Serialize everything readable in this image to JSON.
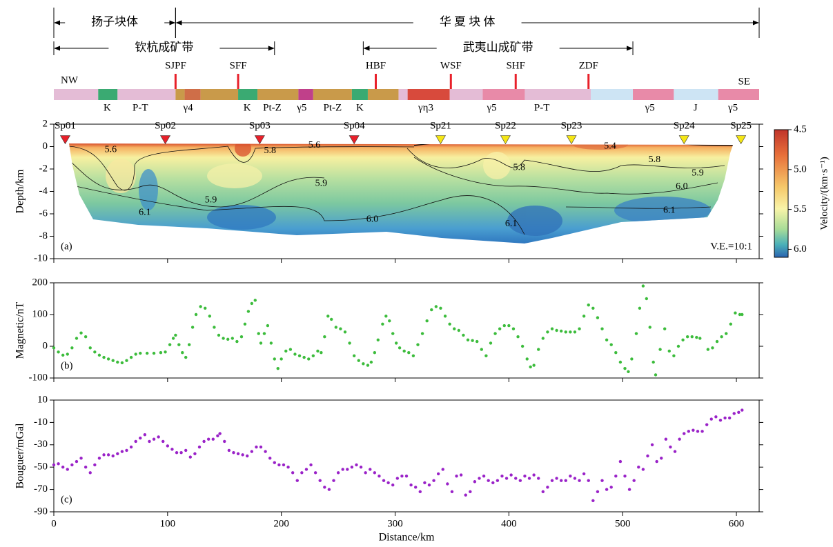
{
  "chart_data": [
    {
      "type": "section",
      "panel_label": "(a)",
      "ylabel": "Depth/km",
      "annotation": "V.E.=10:1",
      "xlim": [
        0,
        620
      ],
      "xticks": [
        0,
        100,
        200,
        300,
        400,
        500,
        600
      ],
      "ylim": [
        -10,
        2
      ],
      "yticks": [
        2,
        0,
        -2,
        -4,
        -6,
        -8,
        -10
      ],
      "left_label": "NW",
      "right_label": "SE",
      "blocks": [
        {
          "label": "扬子块体",
          "x0": 0,
          "x1": 107
        },
        {
          "label": "华 夏 块 体",
          "x0": 107,
          "x1": 620
        }
      ],
      "belts": [
        {
          "label": "钦杭成矿带",
          "x0": 0,
          "x1": 194
        },
        {
          "label": "武夷山成矿带",
          "x0": 272,
          "x1": 509
        }
      ],
      "faults": [
        {
          "label": "SJPF",
          "x": 107
        },
        {
          "label": "SFF",
          "x": 162
        },
        {
          "label": "HBF",
          "x": 283
        },
        {
          "label": "WSF",
          "x": 349
        },
        {
          "label": "SHF",
          "x": 406
        },
        {
          "label": "ZDF",
          "x": 470
        }
      ],
      "strip": [
        {
          "x0": 0,
          "x1": 39,
          "color": "#e4bcd6"
        },
        {
          "x0": 39,
          "x1": 56,
          "color": "#3aaa72"
        },
        {
          "x0": 56,
          "x1": 107,
          "color": "#e4bcd6"
        },
        {
          "x0": 107,
          "x1": 115,
          "color": "#c99a4a"
        },
        {
          "x0": 115,
          "x1": 129,
          "color": "#cf6e48"
        },
        {
          "x0": 129,
          "x1": 162,
          "color": "#c99a4a"
        },
        {
          "x0": 162,
          "x1": 179,
          "color": "#3aaa72"
        },
        {
          "x0": 179,
          "x1": 215,
          "color": "#c99a4a"
        },
        {
          "x0": 215,
          "x1": 228,
          "color": "#c0408a"
        },
        {
          "x0": 228,
          "x1": 262,
          "color": "#c99a4a"
        },
        {
          "x0": 262,
          "x1": 276,
          "color": "#3aaa72"
        },
        {
          "x0": 276,
          "x1": 303,
          "color": "#c99a4a"
        },
        {
          "x0": 303,
          "x1": 311,
          "color": "#e4bcd6"
        },
        {
          "x0": 311,
          "x1": 348,
          "color": "#d84a3c"
        },
        {
          "x0": 348,
          "x1": 377,
          "color": "#e4bcd6"
        },
        {
          "x0": 377,
          "x1": 414,
          "color": "#e88aa8"
        },
        {
          "x0": 414,
          "x1": 472,
          "color": "#e4bcd6"
        },
        {
          "x0": 472,
          "x1": 509,
          "color": "#cde4f4"
        },
        {
          "x0": 509,
          "x1": 545,
          "color": "#e88aa8"
        },
        {
          "x0": 545,
          "x1": 584,
          "color": "#cde4f4"
        },
        {
          "x0": 584,
          "x1": 620,
          "color": "#e88aa8"
        }
      ],
      "units": [
        {
          "label": "K",
          "x": 47
        },
        {
          "label": "P-T",
          "x": 76
        },
        {
          "label": "γ4",
          "x": 118
        },
        {
          "label": "K",
          "x": 170
        },
        {
          "label": "Pt-Z",
          "x": 192
        },
        {
          "label": "γ5",
          "x": 218
        },
        {
          "label": "Pt-Z",
          "x": 245
        },
        {
          "label": "K",
          "x": 269
        },
        {
          "label": "γη3",
          "x": 327
        },
        {
          "label": "γ5",
          "x": 385
        },
        {
          "label": "P-T",
          "x": 429
        },
        {
          "label": "γ5",
          "x": 524
        },
        {
          "label": "J",
          "x": 564
        },
        {
          "label": "γ5",
          "x": 597
        }
      ],
      "shot_points": [
        {
          "name": "Sp01",
          "x": 10,
          "color": "#e8202a"
        },
        {
          "name": "Sp02",
          "x": 98,
          "color": "#e8202a"
        },
        {
          "name": "Sp03",
          "x": 181,
          "color": "#e8202a"
        },
        {
          "name": "Sp04",
          "x": 264,
          "color": "#e8202a"
        },
        {
          "name": "Sp21",
          "x": 340,
          "color": "#f5e614"
        },
        {
          "name": "Sp22",
          "x": 397,
          "color": "#f5e614"
        },
        {
          "name": "Sp23",
          "x": 455,
          "color": "#f5e614"
        },
        {
          "name": "Sp24",
          "x": 554,
          "color": "#f5e614"
        },
        {
          "name": "Sp25",
          "x": 604,
          "color": "#f5e614"
        }
      ],
      "contour_labels": [
        {
          "label": "5.6",
          "x": 50,
          "y": -0.3
        },
        {
          "label": "5.6",
          "x": 229,
          "y": 0.1
        },
        {
          "label": "5.8",
          "x": 190,
          "y": -0.4
        },
        {
          "label": "5.9",
          "x": 235,
          "y": -3.3
        },
        {
          "label": "5.9",
          "x": 138,
          "y": -4.8
        },
        {
          "label": "6.1",
          "x": 80,
          "y": -5.9
        },
        {
          "label": "6.0",
          "x": 280,
          "y": -6.5
        },
        {
          "label": "6.1",
          "x": 402,
          "y": -6.9
        },
        {
          "label": "5.8",
          "x": 409,
          "y": -1.9
        },
        {
          "label": "5.4",
          "x": 489,
          "y": 0.0
        },
        {
          "label": "5.8",
          "x": 528,
          "y": -1.2
        },
        {
          "label": "5.9",
          "x": 566,
          "y": -2.4
        },
        {
          "label": "6.0",
          "x": 552,
          "y": -3.6
        },
        {
          "label": "6.1",
          "x": 541,
          "y": -5.7
        }
      ],
      "colorbar": {
        "label": "Velocity/(km·s⁻¹)",
        "lim": [
          4.5,
          6.1
        ],
        "ticks": [
          4.5,
          {
            "value": 5,
            "label": "5.0"
          },
          5.5,
          {
            "value": 6,
            "label": "6.0"
          }
        ]
      }
    },
    {
      "type": "scatter",
      "panel_label": "(b)",
      "ylabel": "Magnetic/nT",
      "color": "#3cbc3c",
      "xlim": [
        0,
        620
      ],
      "xticks": [
        0,
        100,
        200,
        300,
        400,
        500,
        600
      ],
      "ylim": [
        -100,
        200
      ],
      "yticks": [
        -100,
        0,
        100,
        200
      ],
      "x": [
        0,
        4,
        8,
        12,
        16,
        20,
        24,
        28,
        32,
        36,
        40,
        44,
        48,
        52,
        56,
        60,
        64,
        68,
        72,
        76,
        82,
        88,
        94,
        98,
        102,
        105,
        107,
        110,
        113,
        116,
        119,
        122,
        125,
        129,
        133,
        137,
        141,
        145,
        149,
        153,
        157,
        161,
        165,
        168,
        171,
        174,
        177,
        180,
        182,
        185,
        188,
        191,
        194,
        197,
        200,
        204,
        208,
        212,
        216,
        220,
        224,
        228,
        232,
        235,
        238,
        241,
        244,
        248,
        252,
        256,
        260,
        264,
        268,
        272,
        276,
        279,
        282,
        285,
        289,
        292,
        295,
        298,
        301,
        304,
        308,
        312,
        316,
        320,
        324,
        328,
        332,
        336,
        340,
        344,
        348,
        352,
        356,
        360,
        364,
        368,
        372,
        376,
        380,
        384,
        388,
        392,
        396,
        400,
        404,
        408,
        412,
        416,
        419,
        422,
        426,
        430,
        434,
        438,
        442,
        446,
        450,
        454,
        458,
        462,
        466,
        470,
        474,
        478,
        482,
        486,
        490,
        494,
        498,
        502,
        505,
        508,
        512,
        515,
        518,
        521,
        524,
        527,
        529,
        533,
        537,
        541,
        545,
        549,
        553,
        557,
        561,
        565,
        568,
        575,
        579,
        583,
        587,
        591,
        595,
        599,
        603,
        605
      ],
      "values": [
        -5,
        -18,
        -28,
        -25,
        -5,
        25,
        42,
        30,
        -5,
        -18,
        -28,
        -35,
        -40,
        -45,
        -50,
        -52,
        -45,
        -35,
        -25,
        -22,
        -22,
        -22,
        -20,
        -18,
        5,
        25,
        35,
        5,
        -20,
        -35,
        5,
        60,
        100,
        125,
        120,
        95,
        60,
        35,
        25,
        22,
        25,
        15,
        30,
        70,
        110,
        135,
        145,
        40,
        10,
        40,
        65,
        10,
        -40,
        -70,
        -40,
        -15,
        -10,
        -25,
        -30,
        -35,
        -40,
        -30,
        -15,
        -20,
        30,
        95,
        85,
        60,
        55,
        45,
        10,
        -30,
        -45,
        -55,
        -60,
        -50,
        -20,
        20,
        70,
        95,
        80,
        40,
        10,
        -5,
        -15,
        -20,
        -30,
        5,
        40,
        80,
        115,
        125,
        120,
        95,
        70,
        55,
        50,
        35,
        20,
        18,
        15,
        -10,
        -30,
        10,
        40,
        55,
        65,
        65,
        55,
        30,
        0,
        -40,
        -65,
        -60,
        -10,
        25,
        45,
        55,
        50,
        48,
        45,
        45,
        45,
        55,
        95,
        130,
        120,
        90,
        55,
        20,
        5,
        -20,
        -50,
        -70,
        -80,
        -40,
        40,
        120,
        190,
        150,
        60,
        -50,
        -90,
        -10,
        55,
        -15,
        -30,
        0,
        20,
        30,
        30,
        28,
        25,
        -10,
        -5,
        15,
        30,
        40,
        70,
        105,
        100,
        100
      ]
    },
    {
      "type": "scatter",
      "panel_label": "(c)",
      "ylabel": "Bouguer/mGal",
      "xlabel": "Distance/km",
      "color": "#9a22c8",
      "xlim": [
        0,
        620
      ],
      "xticks": [
        0,
        100,
        200,
        300,
        400,
        500,
        600
      ],
      "ylim": [
        -90,
        10
      ],
      "yticks": [
        10,
        -10,
        -30,
        -50,
        -70,
        -90
      ],
      "x": [
        0,
        4,
        8,
        12,
        16,
        20,
        24,
        28,
        32,
        36,
        40,
        44,
        48,
        52,
        56,
        60,
        64,
        68,
        72,
        76,
        80,
        84,
        88,
        92,
        96,
        100,
        104,
        108,
        112,
        116,
        120,
        124,
        128,
        132,
        136,
        140,
        144,
        146,
        150,
        154,
        158,
        162,
        166,
        170,
        174,
        178,
        182,
        186,
        190,
        194,
        198,
        202,
        206,
        210,
        214,
        218,
        222,
        226,
        230,
        234,
        238,
        242,
        246,
        250,
        254,
        258,
        262,
        266,
        270,
        274,
        278,
        282,
        286,
        290,
        294,
        298,
        302,
        306,
        310,
        314,
        318,
        322,
        326,
        330,
        334,
        338,
        342,
        346,
        350,
        354,
        358,
        362,
        366,
        370,
        374,
        378,
        382,
        386,
        390,
        394,
        398,
        402,
        406,
        410,
        414,
        418,
        422,
        426,
        430,
        434,
        438,
        442,
        446,
        450,
        454,
        458,
        462,
        466,
        470,
        474,
        478,
        482,
        486,
        490,
        494,
        498,
        502,
        506,
        510,
        514,
        518,
        522,
        526,
        530,
        534,
        538,
        542,
        546,
        550,
        554,
        558,
        562,
        566,
        570,
        574,
        578,
        582,
        586,
        590,
        594,
        598,
        602,
        605
      ],
      "values": [
        -48,
        -47,
        -50,
        -52,
        -48,
        -45,
        -42,
        -50,
        -55,
        -48,
        -42,
        -39,
        -39,
        -40,
        -38,
        -36,
        -35,
        -32,
        -27,
        -24,
        -21,
        -27,
        -25,
        -23,
        -27,
        -31,
        -34,
        -37,
        -37,
        -35,
        -41,
        -38,
        -32,
        -27,
        -25,
        -25,
        -22,
        -20,
        -27,
        -35,
        -37,
        -38,
        -39,
        -40,
        -36,
        -32,
        -32,
        -36,
        -42,
        -46,
        -48,
        -48,
        -50,
        -55,
        -62,
        -55,
        -52,
        -48,
        -55,
        -62,
        -68,
        -70,
        -62,
        -55,
        -52,
        -52,
        -50,
        -48,
        -50,
        -55,
        -52,
        -55,
        -58,
        -62,
        -64,
        -66,
        -60,
        -58,
        -58,
        -66,
        -68,
        -72,
        -64,
        -66,
        -62,
        -56,
        -52,
        -65,
        -72,
        -58,
        -57,
        -75,
        -72,
        -63,
        -60,
        -58,
        -62,
        -64,
        -62,
        -58,
        -60,
        -57,
        -60,
        -62,
        -58,
        -60,
        -57,
        -60,
        -72,
        -68,
        -62,
        -60,
        -62,
        -62,
        -58,
        -60,
        -62,
        -56,
        -62,
        -80,
        -72,
        -62,
        -70,
        -68,
        -58,
        -45,
        -58,
        -70,
        -62,
        -50,
        -52,
        -40,
        -30,
        -45,
        -42,
        -25,
        -32,
        -36,
        -25,
        -20,
        -18,
        -17,
        -18,
        -18,
        -12,
        -7,
        -5,
        -8,
        -6,
        -6,
        -2,
        -1,
        1
      ]
    }
  ]
}
